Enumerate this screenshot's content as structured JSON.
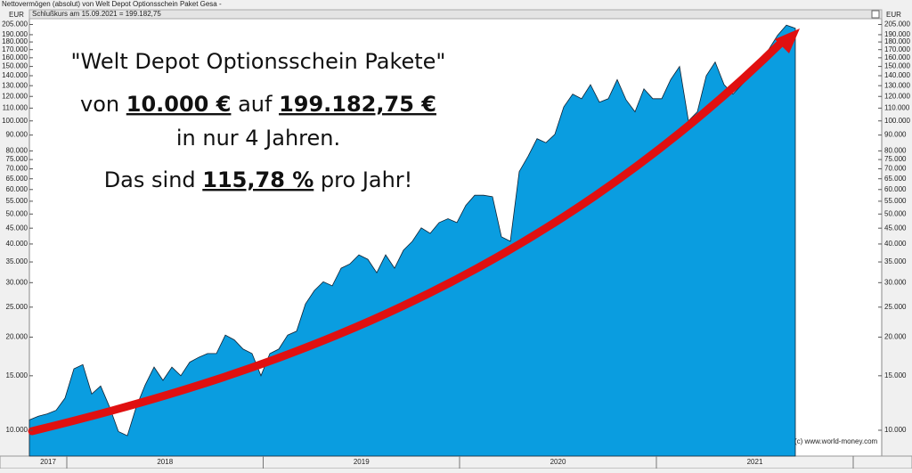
{
  "chart_data": {
    "type": "area",
    "title": "Nettovermögen (absolut) von Welt Depot Optionsschein Paket Gesa -",
    "subtitle": "Schlußkurs am 15.09.2021 = 199.182,75",
    "y_label": "EUR",
    "log_scale": true,
    "color": "#0a9de0",
    "values": [
      10800,
      11100,
      11300,
      11600,
      12700,
      15800,
      16300,
      13100,
      13900,
      11900,
      9900,
      9600,
      11900,
      14000,
      16000,
      14500,
      16000,
      15000,
      16600,
      17200,
      17700,
      17700,
      20300,
      19600,
      18300,
      17700,
      15000,
      17700,
      18300,
      20300,
      20900,
      25600,
      28300,
      30200,
      29300,
      33400,
      34500,
      36900,
      35700,
      32300,
      36900,
      33400,
      38200,
      40800,
      45100,
      43300,
      46900,
      48300,
      46900,
      53300,
      57500,
      57500,
      56900,
      42200,
      40800,
      68600,
      76900,
      87600,
      85000,
      90500,
      111000,
      122000,
      118000,
      131000,
      115000,
      118000,
      136000,
      117000,
      107000,
      127000,
      118000,
      118000,
      136000,
      150000,
      100000,
      107000,
      140000,
      155000,
      131000,
      122000,
      131000,
      140000,
      159000,
      170000,
      189000,
      204000,
      199182.75
    ],
    "ylim": [
      8250,
      214000
    ],
    "yticks": [
      {
        "value": 205000,
        "label": "205.000"
      },
      {
        "value": 190000,
        "label": "190.000"
      },
      {
        "value": 180000,
        "label": "180.000"
      },
      {
        "value": 170000,
        "label": "170.000"
      },
      {
        "value": 160000,
        "label": "160.000"
      },
      {
        "value": 150000,
        "label": "150.000"
      },
      {
        "value": 140000,
        "label": "140.000"
      },
      {
        "value": 130000,
        "label": "130.000"
      },
      {
        "value": 120000,
        "label": "120.000"
      },
      {
        "value": 110000,
        "label": "110.000"
      },
      {
        "value": 100000,
        "label": "100.000"
      },
      {
        "value": 90000,
        "label": "90.000"
      },
      {
        "value": 80000,
        "label": "80.000"
      },
      {
        "value": 75000,
        "label": "75.000"
      },
      {
        "value": 70000,
        "label": "70.000"
      },
      {
        "value": 65000,
        "label": "65.000"
      },
      {
        "value": 60000,
        "label": "60.000"
      },
      {
        "value": 55000,
        "label": "55.000"
      },
      {
        "value": 50000,
        "label": "50.000"
      },
      {
        "value": 45000,
        "label": "45.000"
      },
      {
        "value": 40000,
        "label": "40.000"
      },
      {
        "value": 35000,
        "label": "35.000"
      },
      {
        "value": 30000,
        "label": "30.000"
      },
      {
        "value": 25000,
        "label": "25.000"
      },
      {
        "value": 20000,
        "label": "20.000"
      },
      {
        "value": 15000,
        "label": "15.000"
      },
      {
        "value": 10000,
        "label": "10.000"
      }
    ],
    "x_labels": [
      "2017",
      "2018",
      "2019",
      "2020",
      "2021"
    ],
    "annotations": [
      {
        "segments": [
          {
            "text": "\"Welt Depot Optionsschein Pakete\"",
            "bold": false
          }
        ]
      },
      {
        "segments": [
          {
            "text": "von ",
            "bold": false
          },
          {
            "text": "10.000 €",
            "bold": true
          },
          {
            "text": " auf ",
            "bold": false
          },
          {
            "text": "199.182,75 €",
            "bold": true
          }
        ]
      },
      {
        "segments": [
          {
            "text": "in nur 4 Jahren.",
            "bold": false
          }
        ]
      },
      {
        "segments": [
          {
            "text": "Das sind ",
            "bold": false
          },
          {
            "text": "115,78 %",
            "bold": true
          },
          {
            "text": " pro Jahr!",
            "bold": false
          }
        ]
      }
    ],
    "copyright": "(c) www.world-money.com"
  }
}
